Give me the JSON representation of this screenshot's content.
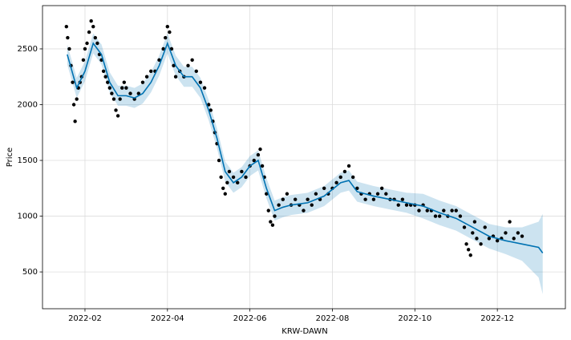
{
  "chart_data": {
    "type": "line",
    "xlabel": "KRW-DAWN",
    "ylabel": "Price",
    "grid": true,
    "xlim": [
      0.97,
      13.65
    ],
    "ylim": [
      170,
      2888
    ],
    "xticks": [
      {
        "value": 2,
        "label": "2022-02"
      },
      {
        "value": 4,
        "label": "2022-04"
      },
      {
        "value": 6,
        "label": "2022-06"
      },
      {
        "value": 8,
        "label": "2022-08"
      },
      {
        "value": 10,
        "label": "2022-10"
      },
      {
        "value": 12,
        "label": "2022-12"
      }
    ],
    "yticks": [
      500,
      1000,
      1500,
      2000,
      2500
    ],
    "observed": {
      "color": "#000000",
      "x": [
        1.55,
        1.58,
        1.62,
        1.66,
        1.7,
        1.73,
        1.76,
        1.8,
        1.84,
        1.88,
        1.92,
        1.96,
        2.0,
        2.05,
        2.1,
        2.15,
        2.2,
        2.25,
        2.3,
        2.35,
        2.4,
        2.45,
        2.5,
        2.55,
        2.6,
        2.65,
        2.7,
        2.75,
        2.8,
        2.85,
        2.9,
        2.95,
        3.0,
        3.1,
        3.2,
        3.3,
        3.4,
        3.5,
        3.6,
        3.7,
        3.8,
        3.9,
        3.95,
        4.0,
        4.05,
        4.1,
        4.15,
        4.2,
        4.3,
        4.4,
        4.5,
        4.6,
        4.7,
        4.8,
        4.9,
        5.0,
        5.05,
        5.1,
        5.15,
        5.2,
        5.25,
        5.3,
        5.35,
        5.4,
        5.45,
        5.5,
        5.6,
        5.7,
        5.8,
        5.9,
        6.0,
        6.1,
        6.2,
        6.25,
        6.3,
        6.35,
        6.4,
        6.45,
        6.5,
        6.55,
        6.6,
        6.7,
        6.8,
        6.9,
        7.0,
        7.1,
        7.2,
        7.3,
        7.4,
        7.5,
        7.6,
        7.7,
        7.8,
        7.9,
        8.0,
        8.1,
        8.2,
        8.3,
        8.4,
        8.5,
        8.6,
        8.7,
        8.8,
        8.9,
        9.0,
        9.1,
        9.2,
        9.3,
        9.4,
        9.5,
        9.6,
        9.7,
        9.8,
        9.9,
        10.0,
        10.1,
        10.2,
        10.3,
        10.4,
        10.5,
        10.6,
        10.7,
        10.8,
        10.9,
        11.0,
        11.1,
        11.2,
        11.25,
        11.3,
        11.35,
        11.4,
        11.45,
        11.5,
        11.6,
        11.7,
        11.8,
        11.9,
        12.0,
        12.1,
        12.2,
        12.3,
        12.4,
        12.5,
        12.6
      ],
      "values": [
        2700,
        2600,
        2500,
        2350,
        2200,
        2000,
        1850,
        2050,
        2150,
        2200,
        2250,
        2400,
        2500,
        2550,
        2650,
        2750,
        2700,
        2600,
        2550,
        2450,
        2400,
        2300,
        2250,
        2200,
        2150,
        2100,
        2050,
        1950,
        1900,
        2050,
        2150,
        2200,
        2150,
        2100,
        2050,
        2100,
        2200,
        2250,
        2300,
        2300,
        2400,
        2500,
        2600,
        2700,
        2650,
        2500,
        2350,
        2250,
        2300,
        2250,
        2350,
        2400,
        2300,
        2200,
        2150,
        2000,
        1950,
        1850,
        1750,
        1650,
        1500,
        1350,
        1250,
        1200,
        1300,
        1400,
        1350,
        1300,
        1400,
        1350,
        1450,
        1500,
        1550,
        1600,
        1450,
        1350,
        1200,
        1050,
        950,
        920,
        1000,
        1100,
        1150,
        1200,
        1100,
        1150,
        1100,
        1050,
        1150,
        1100,
        1200,
        1150,
        1250,
        1200,
        1250,
        1300,
        1350,
        1400,
        1450,
        1350,
        1250,
        1200,
        1150,
        1200,
        1150,
        1200,
        1250,
        1200,
        1150,
        1150,
        1100,
        1150,
        1100,
        1100,
        1100,
        1050,
        1100,
        1050,
        1050,
        1000,
        1000,
        1050,
        1000,
        1050,
        1050,
        1000,
        900,
        750,
        700,
        650,
        850,
        950,
        800,
        750,
        900,
        800,
        820,
        780,
        800,
        850,
        950,
        800,
        850,
        820
      ]
    },
    "forecast": {
      "color": "#0072b2",
      "band_color": "#0072b2",
      "x": [
        1.57,
        1.8,
        2.0,
        2.2,
        2.4,
        2.6,
        2.8,
        3.0,
        3.2,
        3.4,
        3.6,
        3.8,
        4.0,
        4.2,
        4.4,
        4.6,
        4.8,
        5.0,
        5.2,
        5.4,
        5.6,
        5.8,
        6.0,
        6.2,
        6.4,
        6.6,
        6.8,
        7.0,
        7.4,
        7.8,
        8.2,
        8.4,
        8.6,
        9.0,
        9.4,
        9.8,
        10.2,
        10.6,
        11.0,
        11.4,
        11.8,
        12.2,
        12.6,
        13.0,
        13.1
      ],
      "values": [
        2450,
        2150,
        2300,
        2550,
        2450,
        2200,
        2080,
        2080,
        2060,
        2100,
        2200,
        2350,
        2550,
        2350,
        2250,
        2250,
        2150,
        1950,
        1700,
        1400,
        1300,
        1350,
        1450,
        1500,
        1250,
        1050,
        1080,
        1100,
        1120,
        1180,
        1300,
        1320,
        1220,
        1180,
        1150,
        1120,
        1090,
        1030,
        980,
        900,
        820,
        780,
        750,
        720,
        670
      ],
      "lower": [
        2360,
        2060,
        2210,
        2460,
        2360,
        2110,
        1990,
        1990,
        1970,
        2010,
        2110,
        2260,
        2460,
        2260,
        2160,
        2160,
        2060,
        1860,
        1610,
        1310,
        1210,
        1260,
        1360,
        1410,
        1160,
        960,
        990,
        1010,
        1030,
        1090,
        1210,
        1230,
        1130,
        1090,
        1060,
        1030,
        980,
        920,
        870,
        790,
        710,
        660,
        600,
        450,
        300
      ],
      "upper": [
        2540,
        2240,
        2390,
        2640,
        2540,
        2290,
        2170,
        2170,
        2150,
        2190,
        2290,
        2440,
        2640,
        2440,
        2340,
        2340,
        2240,
        2040,
        1790,
        1490,
        1390,
        1440,
        1540,
        1590,
        1340,
        1140,
        1170,
        1190,
        1210,
        1270,
        1390,
        1410,
        1310,
        1270,
        1240,
        1210,
        1200,
        1140,
        1090,
        1010,
        930,
        900,
        900,
        950,
        1020
      ]
    }
  }
}
